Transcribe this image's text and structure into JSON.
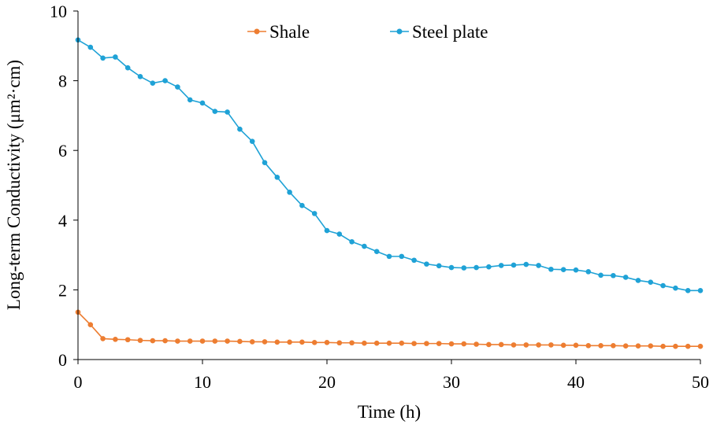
{
  "chart_data": {
    "type": "line",
    "title": "",
    "xlabel": "Time (h)",
    "ylabel": "Long-term Conductivity (μm²·cm)",
    "xlim": [
      0,
      50
    ],
    "ylim": [
      0,
      10
    ],
    "xticks": [
      "0",
      "10",
      "20",
      "30",
      "40",
      "50"
    ],
    "yticks": [
      "0",
      "2",
      "4",
      "6",
      "8",
      "10"
    ],
    "grid": false,
    "legend_position": "top-center",
    "x": [
      0,
      1,
      2,
      3,
      4,
      5,
      6,
      7,
      8,
      9,
      10,
      11,
      12,
      13,
      14,
      15,
      16,
      17,
      18,
      19,
      20,
      21,
      22,
      23,
      24,
      25,
      26,
      27,
      28,
      29,
      30,
      31,
      32,
      33,
      34,
      35,
      36,
      37,
      38,
      39,
      40,
      41,
      42,
      43,
      44,
      45,
      46,
      47,
      48,
      49,
      50
    ],
    "series": [
      {
        "name": "Shale",
        "color": "#ED7D31",
        "values": [
          1.36,
          1.0,
          0.6,
          0.58,
          0.57,
          0.55,
          0.54,
          0.54,
          0.53,
          0.53,
          0.53,
          0.53,
          0.53,
          0.52,
          0.51,
          0.51,
          0.5,
          0.5,
          0.5,
          0.49,
          0.49,
          0.48,
          0.48,
          0.47,
          0.47,
          0.47,
          0.47,
          0.46,
          0.46,
          0.46,
          0.45,
          0.45,
          0.44,
          0.43,
          0.43,
          0.42,
          0.42,
          0.42,
          0.42,
          0.41,
          0.41,
          0.4,
          0.4,
          0.4,
          0.39,
          0.39,
          0.39,
          0.38,
          0.38,
          0.38,
          0.38
        ]
      },
      {
        "name": "Steel plate",
        "color": "#1FA2D6",
        "values": [
          9.17,
          8.96,
          8.65,
          8.68,
          8.37,
          8.12,
          7.93,
          8.0,
          7.82,
          7.45,
          7.36,
          7.12,
          7.1,
          6.61,
          6.26,
          5.65,
          5.23,
          4.8,
          4.42,
          4.19,
          3.7,
          3.6,
          3.38,
          3.25,
          3.1,
          2.96,
          2.96,
          2.85,
          2.74,
          2.69,
          2.64,
          2.63,
          2.64,
          2.66,
          2.7,
          2.71,
          2.73,
          2.7,
          2.59,
          2.58,
          2.57,
          2.52,
          2.42,
          2.41,
          2.36,
          2.27,
          2.22,
          2.12,
          2.05,
          1.98,
          1.98
        ]
      }
    ]
  }
}
